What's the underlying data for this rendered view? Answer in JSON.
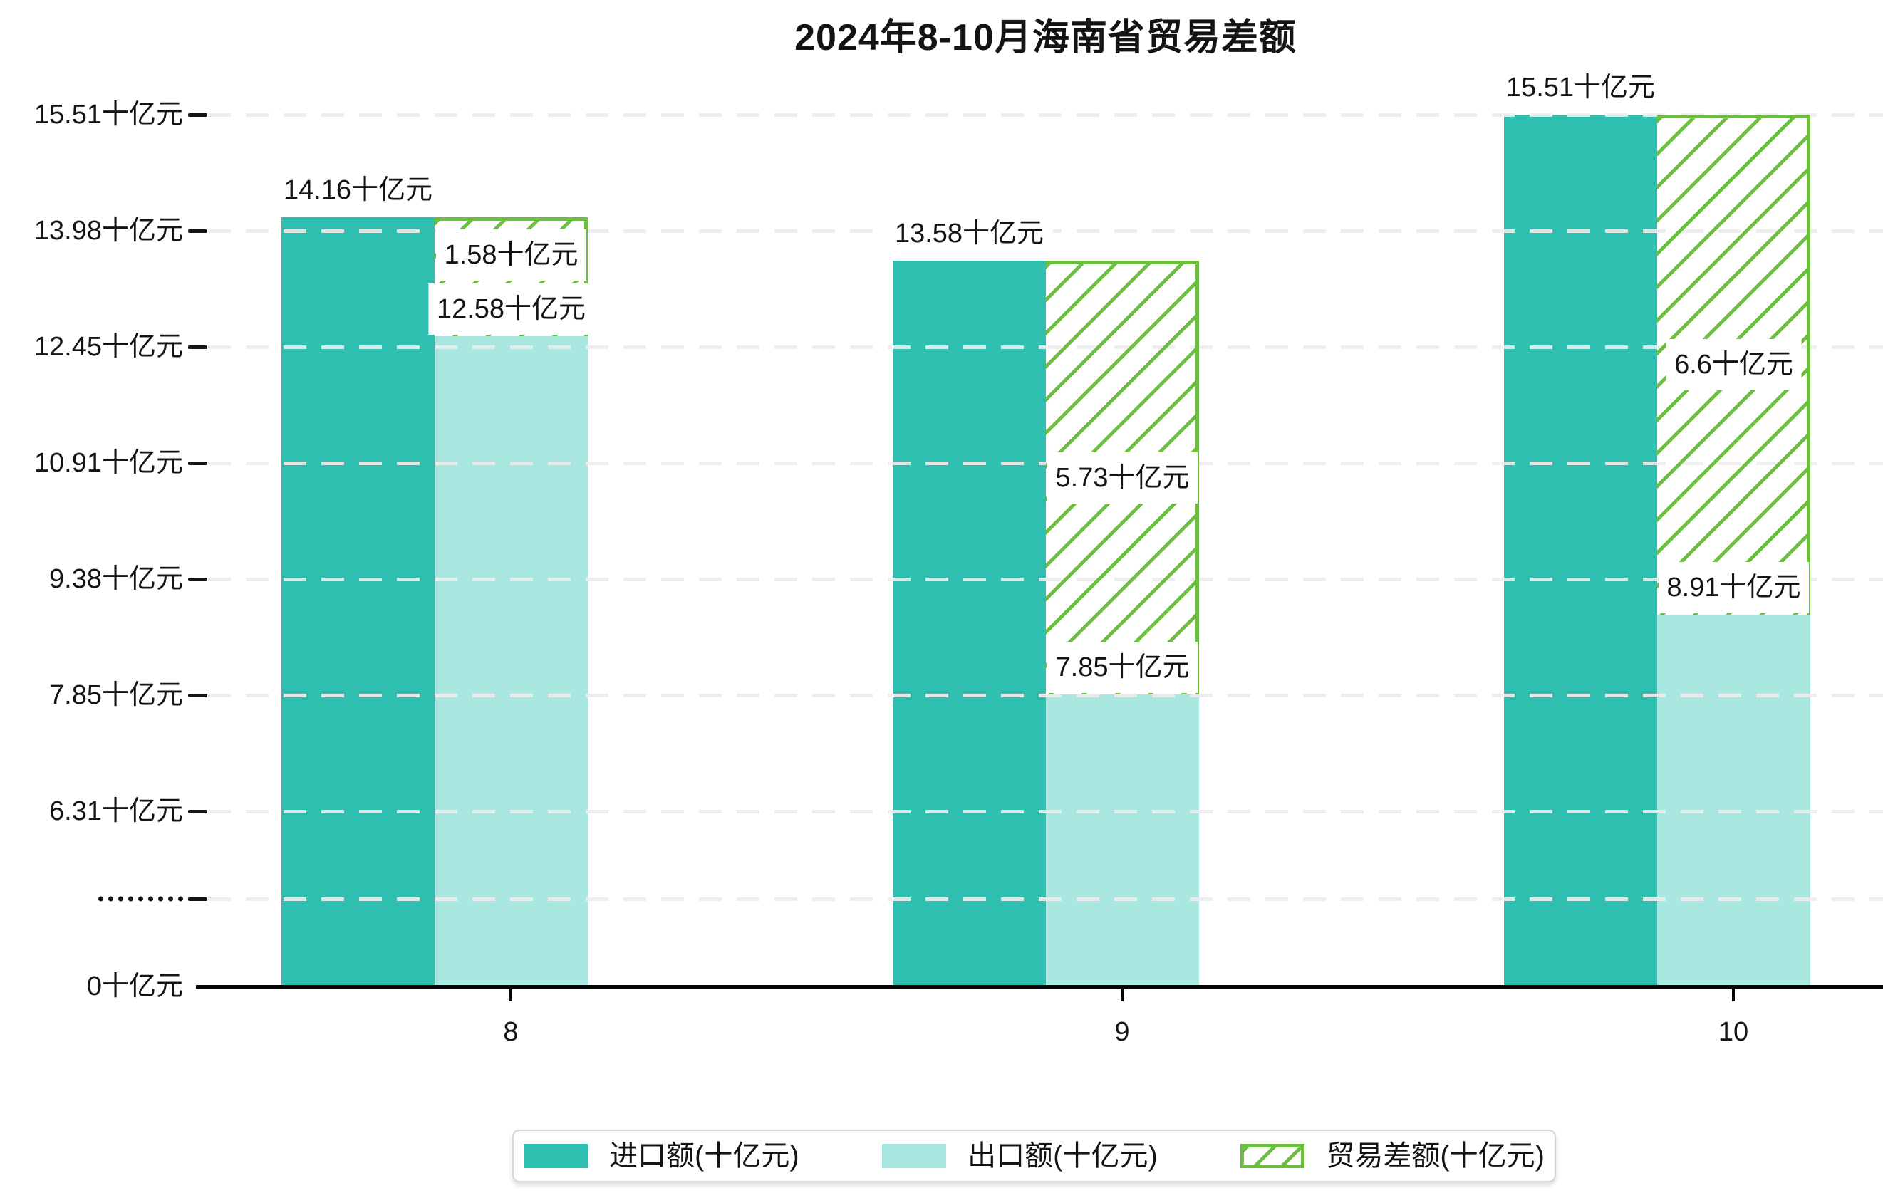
{
  "chart_data": {
    "type": "bar",
    "title": "2024年8-10月海南省贸易差额",
    "categories": [
      "8",
      "9",
      "10"
    ],
    "series": [
      {
        "name": "进口额(十亿元)",
        "role": "import",
        "values": [
          14.16,
          13.58,
          15.51
        ],
        "value_labels": [
          "14.16十亿元",
          "13.58十亿元",
          "15.51十亿元"
        ],
        "color": "#2fbfb0"
      },
      {
        "name": "出口额(十亿元)",
        "role": "export",
        "values": [
          12.58,
          7.85,
          8.91
        ],
        "value_labels": [
          "12.58十亿元",
          "7.85十亿元",
          "8.91十亿元"
        ],
        "color": "#a8e8e0"
      },
      {
        "name": "贸易差额(十亿元)",
        "role": "balance",
        "style": "hatched",
        "values": [
          1.58,
          5.73,
          6.6
        ],
        "value_labels": [
          "1.58十亿元",
          "5.73十亿元",
          "6.6十亿元"
        ],
        "color": "#6cbf3e"
      }
    ],
    "x_axis": {
      "tick_labels": [
        "8",
        "9",
        "10"
      ]
    },
    "y_axis": {
      "unit": "十亿元",
      "broken_axis": true,
      "linear_range": [
        6.31,
        15.51
      ],
      "ticks_bottom_to_top": [
        {
          "label": "0十亿元",
          "value": 0
        },
        {
          "label": ".........",
          "value": null,
          "is_break": true
        },
        {
          "label": "6.31十亿元",
          "value": 6.31
        },
        {
          "label": "7.85十亿元",
          "value": 7.85
        },
        {
          "label": "9.38十亿元",
          "value": 9.38
        },
        {
          "label": "10.91十亿元",
          "value": 10.91
        },
        {
          "label": "12.45十亿元",
          "value": 12.45
        },
        {
          "label": "13.98十亿元",
          "value": 13.98
        },
        {
          "label": "15.51十亿元",
          "value": 15.51
        }
      ]
    },
    "legend": {
      "position": "bottom"
    },
    "grid": true,
    "colors": {
      "import_bar": "#2fbfb0",
      "export_bar": "#a8e8e0",
      "balance_hatch": "#6cbf3e",
      "gridline": "#ececec",
      "axis_line": "#050505",
      "text": "#141414",
      "value_label_background": "#ffffff",
      "legend_border": "#d7d7d7"
    }
  }
}
